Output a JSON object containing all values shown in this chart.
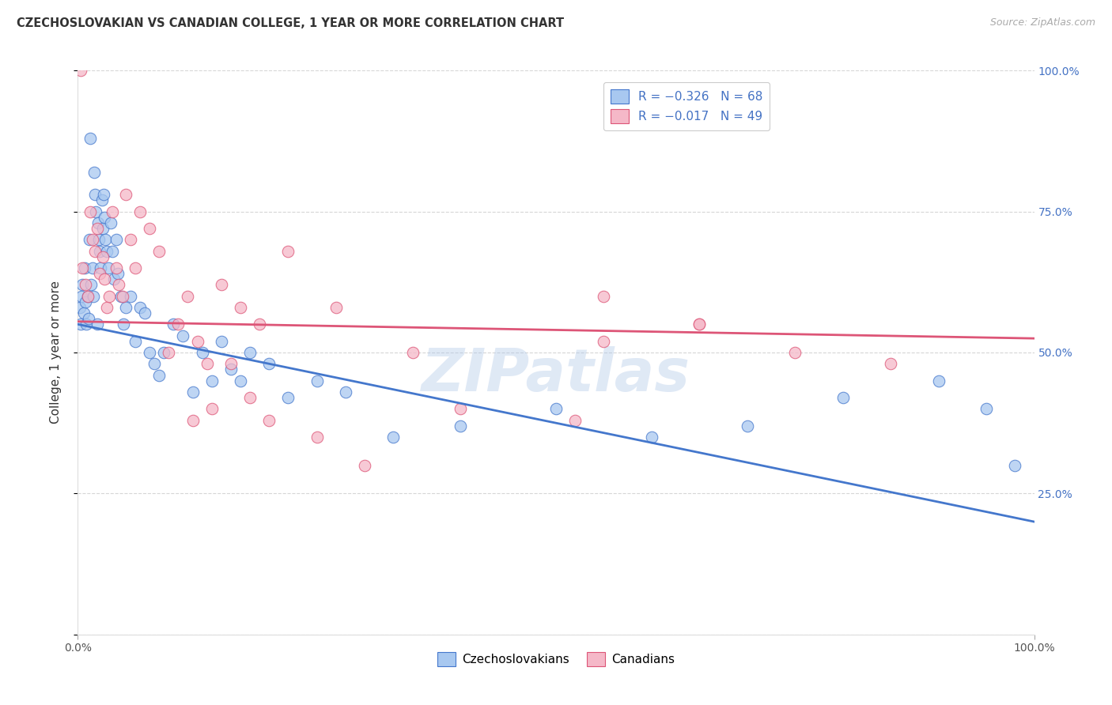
{
  "title": "CZECHOSLOVAKIAN VS CANADIAN COLLEGE, 1 YEAR OR MORE CORRELATION CHART",
  "source": "Source: ZipAtlas.com",
  "ylabel": "College, 1 year or more",
  "legend_labels": [
    "Czechoslovakians",
    "Canadians"
  ],
  "blue_color": "#A8C8F0",
  "pink_color": "#F5B8C8",
  "blue_line_color": "#4477CC",
  "pink_line_color": "#DD5577",
  "watermark": "ZIPatlas",
  "blue_x": [
    0.2,
    0.3,
    0.4,
    0.5,
    0.6,
    0.7,
    0.8,
    0.9,
    1.0,
    1.1,
    1.2,
    1.3,
    1.4,
    1.5,
    1.6,
    1.7,
    1.8,
    1.9,
    2.0,
    2.1,
    2.2,
    2.3,
    2.4,
    2.5,
    2.6,
    2.7,
    2.8,
    2.9,
    3.0,
    3.2,
    3.4,
    3.6,
    3.8,
    4.0,
    4.2,
    4.5,
    4.8,
    5.0,
    5.5,
    6.0,
    6.5,
    7.0,
    7.5,
    8.0,
    8.5,
    9.0,
    10.0,
    11.0,
    12.0,
    13.0,
    14.0,
    15.0,
    16.0,
    17.0,
    18.0,
    20.0,
    22.0,
    25.0,
    28.0,
    33.0,
    40.0,
    50.0,
    60.0,
    70.0,
    80.0,
    90.0,
    95.0,
    98.0
  ],
  "blue_y": [
    58,
    55,
    60,
    62,
    57,
    65,
    59,
    55,
    60,
    56,
    70,
    88,
    62,
    65,
    60,
    82,
    78,
    75,
    55,
    73,
    70,
    68,
    65,
    77,
    72,
    78,
    74,
    70,
    68,
    65,
    73,
    68,
    63,
    70,
    64,
    60,
    55,
    58,
    60,
    52,
    58,
    57,
    50,
    48,
    46,
    50,
    55,
    53,
    43,
    50,
    45,
    52,
    47,
    45,
    50,
    48,
    42,
    45,
    43,
    35,
    37,
    40,
    35,
    37,
    42,
    45,
    40,
    30
  ],
  "pink_x": [
    0.3,
    0.5,
    0.8,
    1.0,
    1.3,
    1.5,
    1.8,
    2.0,
    2.3,
    2.6,
    2.8,
    3.0,
    3.3,
    3.6,
    4.0,
    4.3,
    4.7,
    5.0,
    5.5,
    6.0,
    6.5,
    7.5,
    8.5,
    9.5,
    10.5,
    11.5,
    12.5,
    13.5,
    15.0,
    17.0,
    19.0,
    22.0,
    27.0,
    35.0,
    55.0,
    65.0,
    75.0,
    85.0,
    55.0,
    65.0,
    40.0,
    52.0,
    25.0,
    30.0,
    20.0,
    18.0,
    16.0,
    14.0,
    12.0
  ],
  "pink_y": [
    100,
    65,
    62,
    60,
    75,
    70,
    68,
    72,
    64,
    67,
    63,
    58,
    60,
    75,
    65,
    62,
    60,
    78,
    70,
    65,
    75,
    72,
    68,
    50,
    55,
    60,
    52,
    48,
    62,
    58,
    55,
    68,
    58,
    50,
    52,
    55,
    50,
    48,
    60,
    55,
    40,
    38,
    35,
    30,
    38,
    42,
    48,
    40,
    38
  ],
  "blue_line_start_y": 55.0,
  "blue_line_end_y": 20.0,
  "pink_line_start_y": 55.5,
  "pink_line_end_y": 52.5,
  "xlim": [
    0,
    100
  ],
  "ylim": [
    0,
    100
  ],
  "figsize": [
    14.06,
    8.92
  ],
  "dpi": 100
}
